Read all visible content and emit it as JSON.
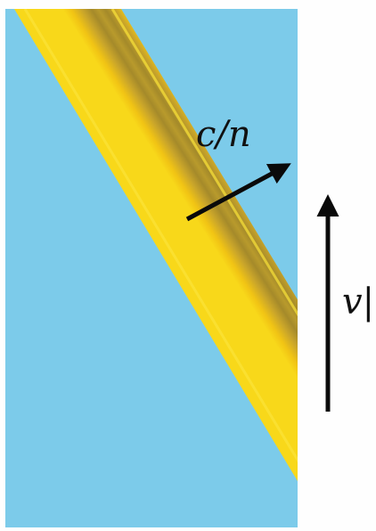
{
  "labels": {
    "phase_velocity": "c/n",
    "parallel_velocity": "v|"
  },
  "colors": {
    "medium": "#7ccbea",
    "band_edge": "#f7d21c",
    "band_center": "#a98c26",
    "arrow": "#0a0a0a",
    "background": "#fefefe"
  }
}
